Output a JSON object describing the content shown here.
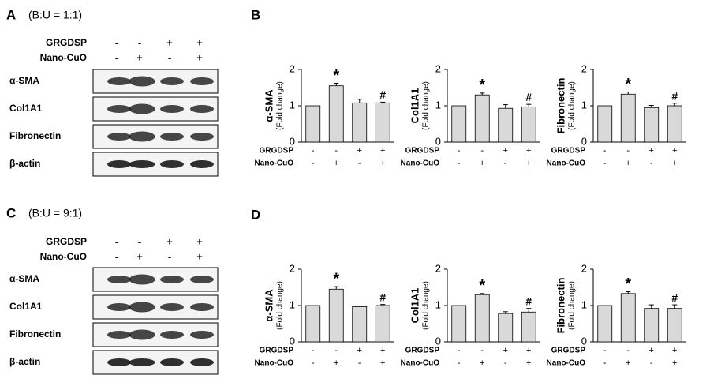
{
  "blots": [
    {
      "panel": "A",
      "condition": "(B:U = 1:1)",
      "treatments": [
        {
          "name": "GRGDSP",
          "signs": [
            "-",
            "-",
            "+",
            "+"
          ]
        },
        {
          "name": "Nano-CuO",
          "signs": [
            "-",
            "+",
            "-",
            "+"
          ]
        }
      ],
      "rows": [
        "α-SMA",
        "Col1A1",
        "Fibronectin",
        "β-actin"
      ]
    },
    {
      "panel": "C",
      "condition": "(B:U = 9:1)",
      "treatments": [
        {
          "name": "GRGDSP",
          "signs": [
            "-",
            "-",
            "+",
            "+"
          ]
        },
        {
          "name": "Nano-CuO",
          "signs": [
            "-",
            "+",
            "-",
            "+"
          ]
        }
      ],
      "rows": [
        "α-SMA",
        "Col1A1",
        "Fibronectin",
        "β-actin"
      ]
    }
  ],
  "chart_panels": [
    "B",
    "D"
  ],
  "chart_data": [
    {
      "type": "bar",
      "ylabel": "α-SMA",
      "ysublabel": "(Fold change)",
      "values": [
        1,
        1.55,
        1.08,
        1.08
      ],
      "errors": [
        0,
        0.07,
        0.1,
        0.02
      ],
      "annotations": [
        null,
        "*",
        null,
        "#"
      ],
      "conditions": [
        {
          "name": "GRGDSP",
          "signs": [
            "-",
            "-",
            "+",
            "+"
          ]
        },
        {
          "name": "Nano-CuO",
          "signs": [
            "-",
            "+",
            "-",
            "+"
          ]
        }
      ],
      "ylim": [
        0,
        2
      ],
      "yticks": [
        0,
        1,
        2
      ],
      "color": "#d9d9d9"
    },
    {
      "type": "bar",
      "ylabel": "Col1A1",
      "ysublabel": "(Fold change)",
      "values": [
        1,
        1.3,
        0.93,
        0.97
      ],
      "errors": [
        0,
        0.05,
        0.1,
        0.07
      ],
      "annotations": [
        null,
        "*",
        null,
        "#"
      ],
      "conditions": [
        {
          "name": "GRGDSP",
          "signs": [
            "-",
            "-",
            "+",
            "+"
          ]
        },
        {
          "name": "Nano-CuO",
          "signs": [
            "-",
            "+",
            "-",
            "+"
          ]
        }
      ],
      "ylim": [
        0,
        2
      ],
      "yticks": [
        0,
        1,
        2
      ],
      "color": "#d9d9d9"
    },
    {
      "type": "bar",
      "ylabel": "Fibronectin",
      "ysublabel": "(Fold change)",
      "values": [
        1,
        1.32,
        0.95,
        1.0
      ],
      "errors": [
        0,
        0.06,
        0.06,
        0.07
      ],
      "annotations": [
        null,
        "*",
        null,
        "#"
      ],
      "conditions": [
        {
          "name": "GRGDSP",
          "signs": [
            "-",
            "-",
            "+",
            "+"
          ]
        },
        {
          "name": "Nano-CuO",
          "signs": [
            "-",
            "+",
            "-",
            "+"
          ]
        }
      ],
      "ylim": [
        0,
        2
      ],
      "yticks": [
        0,
        1,
        2
      ],
      "color": "#d9d9d9"
    },
    {
      "type": "bar",
      "ylabel": "α-SMA",
      "ysublabel": "(Fold change)",
      "values": [
        1,
        1.45,
        0.97,
        1.0
      ],
      "errors": [
        0,
        0.07,
        0.02,
        0.03
      ],
      "annotations": [
        null,
        "*",
        null,
        "#"
      ],
      "conditions": [
        {
          "name": "GRGDSP",
          "signs": [
            "-",
            "-",
            "+",
            "+"
          ]
        },
        {
          "name": "Nano-CuO",
          "signs": [
            "-",
            "+",
            "-",
            "+"
          ]
        }
      ],
      "ylim": [
        0,
        2
      ],
      "yticks": [
        0,
        1,
        2
      ],
      "color": "#d9d9d9"
    },
    {
      "type": "bar",
      "ylabel": "Col1A1",
      "ysublabel": "(Fold change)",
      "values": [
        1,
        1.3,
        0.78,
        0.82
      ],
      "errors": [
        0,
        0.03,
        0.05,
        0.1
      ],
      "annotations": [
        null,
        "*",
        null,
        "#"
      ],
      "conditions": [
        {
          "name": "GRGDSP",
          "signs": [
            "-",
            "-",
            "+",
            "+"
          ]
        },
        {
          "name": "Nano-CuO",
          "signs": [
            "-",
            "+",
            "-",
            "+"
          ]
        }
      ],
      "ylim": [
        0,
        2
      ],
      "yticks": [
        0,
        1,
        2
      ],
      "color": "#d9d9d9"
    },
    {
      "type": "bar",
      "ylabel": "Fibronectin",
      "ysublabel": "(Fold change)",
      "values": [
        1,
        1.33,
        0.92,
        0.92
      ],
      "errors": [
        0,
        0.05,
        0.1,
        0.1
      ],
      "annotations": [
        null,
        "*",
        null,
        "#"
      ],
      "conditions": [
        {
          "name": "GRGDSP",
          "signs": [
            "-",
            "-",
            "+",
            "+"
          ]
        },
        {
          "name": "Nano-CuO",
          "signs": [
            "-",
            "+",
            "-",
            "+"
          ]
        }
      ],
      "ylim": [
        0,
        2
      ],
      "yticks": [
        0,
        1,
        2
      ],
      "color": "#d9d9d9"
    }
  ]
}
